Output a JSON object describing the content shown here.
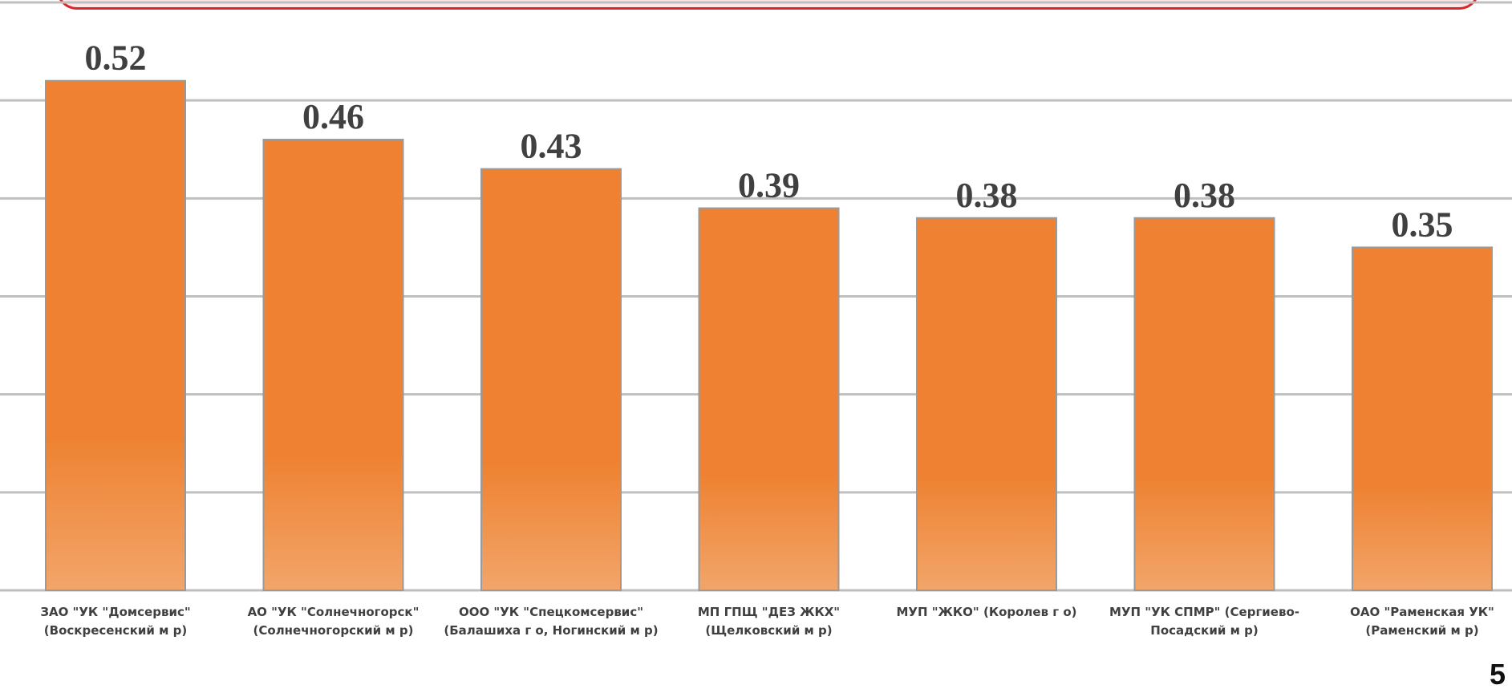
{
  "chart_data": {
    "type": "bar",
    "categories": [
      "ЗАО \"УК \"Домсервис\" (Воскресенский м р)",
      "АО \"УК \"Солнечногорск\" (Солнечногорский м р)",
      "ООО \"УК \"Спецкомсервис\" (Балашиха г о, Ногинский м р)",
      "МП ГПЩ \"ДЕЗ ЖКХ\" (Щелковский м р)",
      "МУП \"ЖКО\" (Королев г о)",
      "МУП \"УК СПМР\" (Сергиево-Посадский м р)",
      "ОАО \"Раменская УК\" (Раменский м р)"
    ],
    "values": [
      0.52,
      0.46,
      0.43,
      0.39,
      0.38,
      0.38,
      0.35
    ],
    "value_labels": [
      "0.52",
      "0.46",
      "0.43",
      "0.39",
      "0.38",
      "0.38",
      "0.35"
    ],
    "ylim": [
      0,
      0.6
    ],
    "grid": true,
    "bar_color": "#ee8232",
    "bar_color_bottom": "#f2a56a",
    "title": "",
    "xlabel": "",
    "ylabel": ""
  },
  "slide_number": "5",
  "banner_border_color": "#d9262b"
}
